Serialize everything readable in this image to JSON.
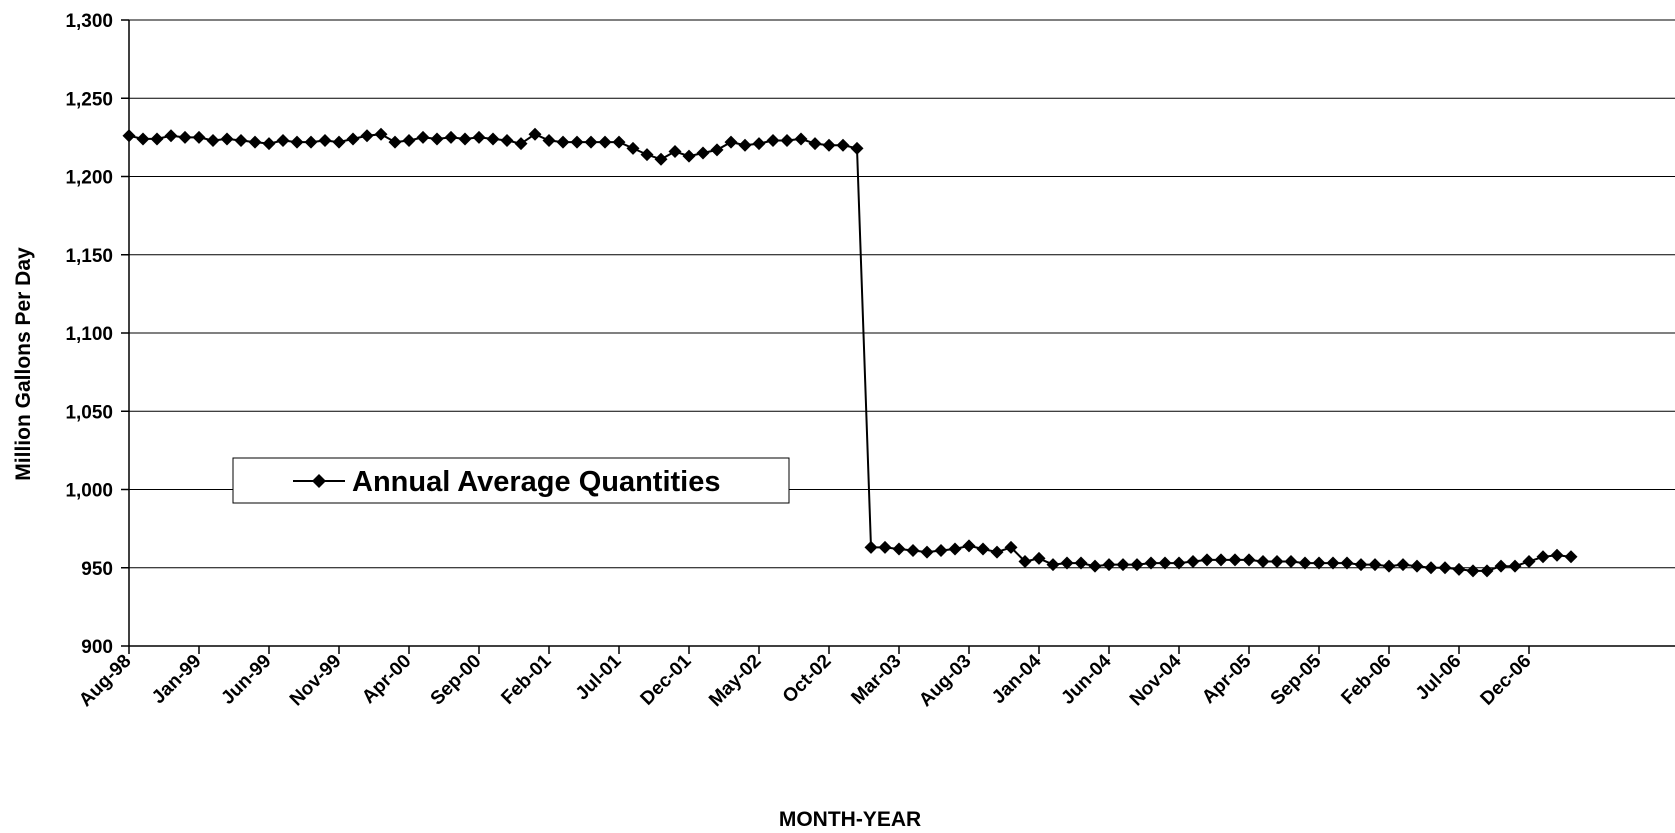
{
  "chart_data": {
    "type": "line",
    "title": "",
    "xlabel": "MONTH-YEAR",
    "ylabel": "Million Gallons Per Day",
    "ylim": [
      900,
      1300
    ],
    "y_ticks": [
      "900",
      "950",
      "1,000",
      "1,050",
      "1,100",
      "1,150",
      "1,200",
      "1,250",
      "1,300"
    ],
    "x_tick_labels": [
      "Aug-98",
      "Jan-99",
      "Jun-99",
      "Nov-99",
      "Apr-00",
      "Sep-00",
      "Feb-01",
      "Jul-01",
      "Dec-01",
      "May-02",
      "Oct-02",
      "Mar-03",
      "Aug-03",
      "Jan-04",
      "Jun-04",
      "Nov-04",
      "Apr-05",
      "Sep-05",
      "Feb-06",
      "Jul-06",
      "Dec-06"
    ],
    "x_start": "Aug-98",
    "grid": {
      "horizontal": true,
      "vertical": false
    },
    "legend": {
      "position": "center-left",
      "entries": [
        "Annual Average Quantities"
      ]
    },
    "colors": {
      "line": "#000000",
      "grid": "#000000",
      "background": "#ffffff"
    },
    "series": [
      {
        "name": "Annual Average Quantities",
        "marker": "diamond",
        "values": [
          1226,
          1224,
          1224,
          1226,
          1225,
          1225,
          1223,
          1224,
          1223,
          1222,
          1221,
          1223,
          1222,
          1222,
          1223,
          1222,
          1224,
          1226,
          1227,
          1222,
          1223,
          1225,
          1224,
          1225,
          1224,
          1225,
          1224,
          1223,
          1221,
          1227,
          1223,
          1222,
          1222,
          1222,
          1222,
          1222,
          1218,
          1214,
          1211,
          1216,
          1213,
          1215,
          1217,
          1222,
          1220,
          1221,
          1223,
          1223,
          1224,
          1221,
          1220,
          1220,
          1218,
          963,
          963,
          962,
          961,
          960,
          961,
          962,
          964,
          962,
          960,
          963,
          954,
          956,
          952,
          953,
          953,
          951,
          952,
          952,
          952,
          953,
          953,
          953,
          954,
          955,
          955,
          955,
          955,
          954,
          954,
          954,
          953,
          953,
          953,
          953,
          952,
          952,
          951,
          952,
          951,
          950,
          950,
          949,
          948,
          948,
          951,
          951,
          954,
          957,
          958,
          957
        ]
      }
    ]
  }
}
